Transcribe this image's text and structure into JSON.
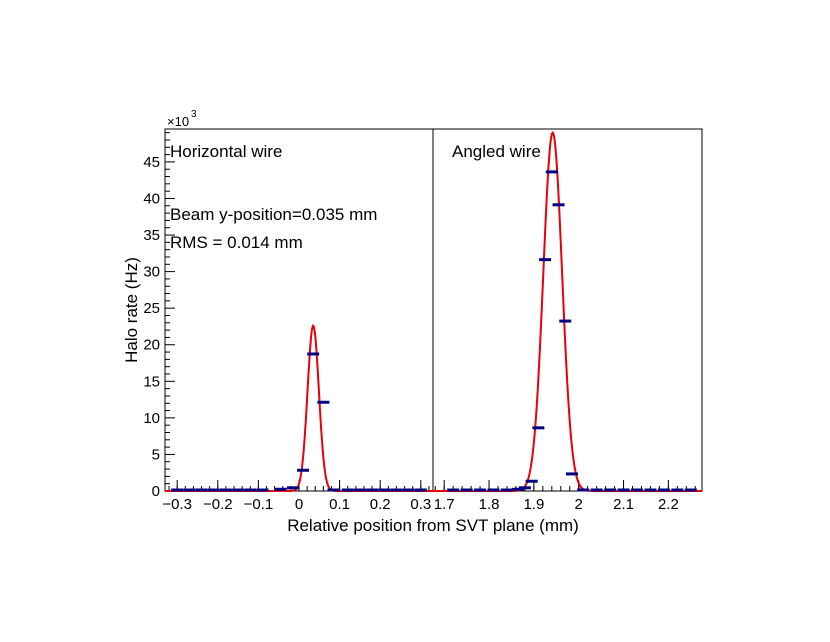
{
  "chart_data": {
    "type": "scatter",
    "xlabel": "Relative position from SVT plane (mm)",
    "ylabel": "Halo rate (Hz)",
    "y_multiplier_label": "×10",
    "y_multiplier_exponent": "3",
    "ylim": [
      0,
      49.5
    ],
    "yticks": [
      0,
      5,
      10,
      15,
      20,
      25,
      30,
      35,
      40,
      45
    ],
    "ytick_labels": [
      "0",
      "5",
      "10",
      "15",
      "20",
      "25",
      "30",
      "35",
      "40",
      "45"
    ],
    "grid": false,
    "colors": {
      "points": "#000080",
      "fit": "#e8000b",
      "axes": "#000000"
    },
    "panels": [
      {
        "label": "Horizontal wire",
        "annotations": [
          "Beam y-position=0.035 mm",
          "RMS = 0.014 mm"
        ],
        "xlim": [
          -0.33,
          0.33
        ],
        "xticks": [
          -0.3,
          -0.2,
          -0.1,
          0,
          0.1,
          0.2,
          0.3
        ],
        "xtick_labels": [
          "−0.3",
          "−0.2",
          "−0.1",
          "0",
          "0.1",
          "0.2",
          "0.3"
        ],
        "points": [
          {
            "x": -0.3,
            "y": 0
          },
          {
            "x": -0.27,
            "y": 0
          },
          {
            "x": -0.24,
            "y": 0
          },
          {
            "x": -0.21,
            "y": 0
          },
          {
            "x": -0.18,
            "y": 0
          },
          {
            "x": -0.15,
            "y": 0
          },
          {
            "x": -0.12,
            "y": 0
          },
          {
            "x": -0.09,
            "y": 0
          },
          {
            "x": -0.045,
            "y": 0.1
          },
          {
            "x": -0.015,
            "y": 0.3
          },
          {
            "x": 0.01,
            "y": 2.7
          },
          {
            "x": 0.035,
            "y": 18.6
          },
          {
            "x": 0.06,
            "y": 12.0
          },
          {
            "x": 0.085,
            "y": 0
          },
          {
            "x": 0.12,
            "y": 0
          },
          {
            "x": 0.15,
            "y": 0
          },
          {
            "x": 0.18,
            "y": 0
          },
          {
            "x": 0.21,
            "y": 0
          },
          {
            "x": 0.24,
            "y": 0
          },
          {
            "x": 0.27,
            "y": 0
          },
          {
            "x": 0.3,
            "y": 0
          }
        ],
        "fit": {
          "type": "gaussian",
          "amplitude": 22.6,
          "mean": 0.035,
          "sigma": 0.014
        }
      },
      {
        "label": "Angled wire",
        "annotations": [],
        "xlim": [
          1.675,
          2.275
        ],
        "xticks": [
          1.7,
          1.8,
          1.9,
          2.0,
          2.1,
          2.2
        ],
        "xtick_labels": [
          "1.7",
          "1.8",
          "1.9",
          "2",
          "2.1",
          "2.2"
        ],
        "points": [
          {
            "x": 1.72,
            "y": 0
          },
          {
            "x": 1.75,
            "y": 0
          },
          {
            "x": 1.78,
            "y": 0
          },
          {
            "x": 1.81,
            "y": 0
          },
          {
            "x": 1.84,
            "y": 0
          },
          {
            "x": 1.865,
            "y": 0.1
          },
          {
            "x": 1.88,
            "y": 0.3
          },
          {
            "x": 1.895,
            "y": 1.2
          },
          {
            "x": 1.91,
            "y": 8.5
          },
          {
            "x": 1.925,
            "y": 31.5
          },
          {
            "x": 1.94,
            "y": 43.5
          },
          {
            "x": 1.955,
            "y": 39.0
          },
          {
            "x": 1.97,
            "y": 23.1
          },
          {
            "x": 1.985,
            "y": 2.2
          },
          {
            "x": 2.01,
            "y": 0
          },
          {
            "x": 2.04,
            "y": 0
          },
          {
            "x": 2.07,
            "y": 0
          },
          {
            "x": 2.1,
            "y": 0
          },
          {
            "x": 2.13,
            "y": 0
          },
          {
            "x": 2.16,
            "y": 0
          },
          {
            "x": 2.19,
            "y": 0
          },
          {
            "x": 2.22,
            "y": 0
          },
          {
            "x": 2.25,
            "y": 0
          }
        ],
        "fit": {
          "type": "gaussian",
          "amplitude": 49.0,
          "mean": 1.942,
          "sigma": 0.021
        }
      }
    ]
  }
}
